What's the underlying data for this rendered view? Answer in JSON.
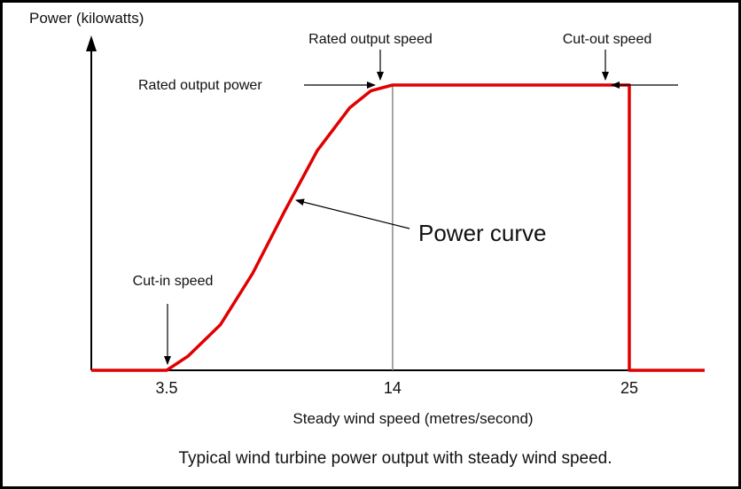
{
  "chart_data": {
    "type": "line",
    "ylabel": "Power (kilowatts)",
    "xlabel": "Steady wind speed (metres/second)",
    "caption": "Typical wind turbine power output with steady wind speed.",
    "x_ticks": [
      {
        "value": 3.5,
        "label": "3.5"
      },
      {
        "value": 14,
        "label": "14"
      },
      {
        "value": 25,
        "label": "25"
      }
    ],
    "series": [
      {
        "color": "#e00000",
        "points": [
          [
            0,
            0
          ],
          [
            3.5,
            0
          ],
          [
            4.5,
            0.05
          ],
          [
            6,
            0.16
          ],
          [
            7.5,
            0.34
          ],
          [
            9,
            0.56
          ],
          [
            10.5,
            0.77
          ],
          [
            12,
            0.92
          ],
          [
            13,
            0.98
          ],
          [
            14,
            1.0
          ],
          [
            25,
            1.0
          ],
          [
            25,
            0
          ],
          [
            28.5,
            0
          ]
        ]
      }
    ],
    "annotations": {
      "rated_output_power": "Rated output power",
      "rated_output_speed": "Rated output speed",
      "cut_out_speed": "Cut-out speed",
      "cut_in_speed": "Cut-in speed",
      "power_curve": "Power curve"
    },
    "ylim": [
      0,
      1.2
    ],
    "xlim": [
      0,
      28.5
    ],
    "grid": false,
    "legend": "none",
    "colors": {
      "curve": "#e00000",
      "axis": "#000000",
      "rated_speed_line": "#888888"
    }
  }
}
